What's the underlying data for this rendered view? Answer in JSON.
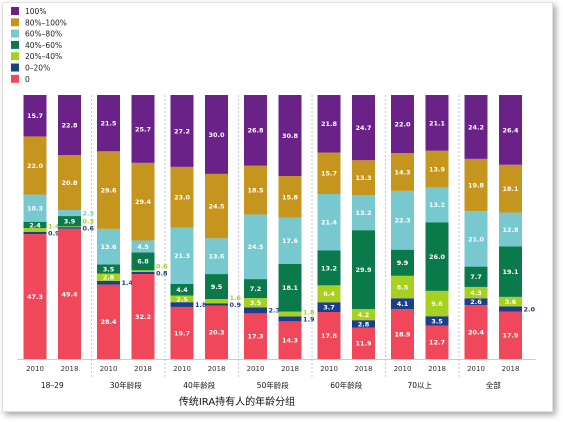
{
  "chart_data": {
    "type": "bar",
    "stacked": true,
    "caption": "传统IRA持有人的年龄分组",
    "ylim": [
      0,
      100
    ],
    "legend_position": "top-left",
    "series": [
      {
        "name": "0",
        "color": "#f0475a"
      },
      {
        "name": "0–20%",
        "color": "#1b3f8c"
      },
      {
        "name": "20%–40%",
        "color": "#a7d021"
      },
      {
        "name": "40%–60%",
        "color": "#0b7a4b"
      },
      {
        "name": "60%–80%",
        "color": "#78c8cf"
      },
      {
        "name": "80%–100%",
        "color": "#c6951d"
      },
      {
        "name": "100%",
        "color": "#6b2288"
      }
    ],
    "legend_order": [
      "100%",
      "80%–100%",
      "60%–80%",
      "40%–60%",
      "20%–40%",
      "0–20%",
      "0"
    ],
    "groups": [
      {
        "label": "18–29",
        "bars": [
          {
            "year": "2010",
            "values": [
              47.3,
              0.9,
              1.4,
              2.4,
              10.3,
              22.0,
              15.7
            ],
            "labels": [
              "47.3",
              "0.9",
              "1.4",
              "2.4",
              "10.3",
              "22.0",
              "15.7"
            ]
          },
          {
            "year": "2018",
            "values": [
              49.4,
              0.6,
              0.3,
              3.9,
              2.3,
              20.8,
              22.8
            ],
            "labels": [
              "49.4",
              "0.6",
              "0.3",
              "3.9",
              "2.3",
              "20.8",
              "22.8"
            ]
          }
        ]
      },
      {
        "label": "30年龄段",
        "bars": [
          {
            "year": "2010",
            "values": [
              28.4,
              1.4,
              2.8,
              3.5,
              13.6,
              29.6,
              21.5
            ],
            "labels": [
              "28.4",
              "1.4",
              "2.8",
              "3.5",
              "13.6",
              "29.6",
              "21.5"
            ]
          },
          {
            "year": "2018",
            "values": [
              32.2,
              0.8,
              0.6,
              6.8,
              4.5,
              29.4,
              25.7
            ],
            "labels": [
              "32.2",
              "0.8",
              "0.6",
              "6.8",
              "4.5",
              "29.4",
              "25.7"
            ]
          }
        ]
      },
      {
        "label": "40年龄段",
        "bars": [
          {
            "year": "2010",
            "values": [
              19.7,
              1.8,
              2.5,
              4.4,
              21.3,
              23.0,
              27.2
            ],
            "labels": [
              "19.7",
              "1.8",
              "2.5",
              "4.4",
              "21.3",
              "23.0",
              "27.2"
            ]
          },
          {
            "year": "2018",
            "values": [
              20.3,
              0.9,
              1.6,
              9.5,
              13.6,
              24.5,
              30.0
            ],
            "labels": [
              "20.3",
              "0.9",
              "1.6",
              "9.5",
              "13.6",
              "24.5",
              "30.0"
            ]
          }
        ]
      },
      {
        "label": "50年龄段",
        "bars": [
          {
            "year": "2010",
            "values": [
              17.3,
              2.3,
              3.5,
              7.2,
              24.5,
              18.5,
              26.8
            ],
            "labels": [
              "17.3",
              "2.3",
              "3.5",
              "7.2",
              "24.5",
              "18.5",
              "26.8"
            ]
          },
          {
            "year": "2018",
            "values": [
              14.3,
              1.9,
              1.8,
              18.1,
              17.6,
              15.8,
              30.8
            ],
            "labels": [
              "14.3",
              "1.9",
              "1.8",
              "18.1",
              "17.6",
              "15.8",
              "30.8"
            ]
          }
        ]
      },
      {
        "label": "60年龄段",
        "bars": [
          {
            "year": "2010",
            "values": [
              17.8,
              3.7,
              6.4,
              13.2,
              21.4,
              15.7,
              21.8
            ],
            "labels": [
              "17.8",
              "3.7",
              "6.4",
              "13.2",
              "21.4",
              "15.7",
              "21.8"
            ]
          },
          {
            "year": "2018",
            "values": [
              11.9,
              2.8,
              4.2,
              29.9,
              13.2,
              13.3,
              24.7
            ],
            "labels": [
              "11.9",
              "2.8",
              "4.2",
              "29.9",
              "13.2",
              "13.3",
              "24.7"
            ]
          }
        ]
      },
      {
        "label": "70以上",
        "bars": [
          {
            "year": "2010",
            "values": [
              18.9,
              4.1,
              8.5,
              9.9,
              22.3,
              14.3,
              22.0
            ],
            "labels": [
              "18.9",
              "4.1",
              "8.5",
              "9.9",
              "22.3",
              "14.3",
              "22.0"
            ]
          },
          {
            "year": "2018",
            "values": [
              12.7,
              3.5,
              9.6,
              26.0,
              13.2,
              13.9,
              21.1
            ],
            "labels": [
              "12.7",
              "3.5",
              "9.6",
              "26.0",
              "13.2",
              "13.9",
              "21.1"
            ]
          }
        ]
      },
      {
        "label": "全部",
        "bars": [
          {
            "year": "2010",
            "values": [
              20.4,
              2.6,
              4.3,
              7.7,
              21.0,
              19.8,
              24.2
            ],
            "labels": [
              "20.4",
              "2.6",
              "4.3",
              "7.7",
              "21.0",
              "19.8",
              "24.2"
            ]
          },
          {
            "year": "2018",
            "values": [
              17.9,
              2.0,
              3.6,
              19.1,
              12.8,
              18.1,
              26.4
            ],
            "labels": [
              "17.9",
              "2.0",
              "3.6",
              "19.1",
              "12.8",
              "18.1",
              "26.4"
            ]
          }
        ]
      }
    ]
  }
}
